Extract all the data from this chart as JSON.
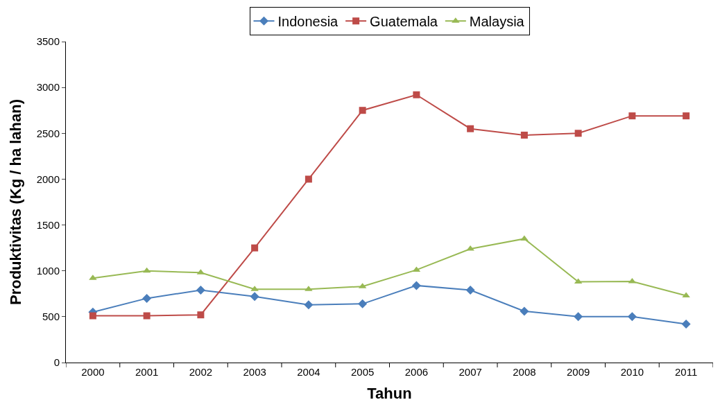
{
  "chart_data": {
    "type": "line",
    "xlabel": "Tahun",
    "ylabel": "Produktivitas (Kg / ha lahan)",
    "categories": [
      "2000",
      "2001",
      "2002",
      "2003",
      "2004",
      "2005",
      "2006",
      "2007",
      "2008",
      "2009",
      "2010",
      "2011"
    ],
    "series": [
      {
        "name": "Indonesia",
        "color": "#4a7ebb",
        "marker": "diamond",
        "values": [
          550,
          700,
          790,
          720,
          630,
          640,
          840,
          790,
          560,
          500,
          500,
          420
        ]
      },
      {
        "name": "Guatemala",
        "color": "#be4b48",
        "marker": "square",
        "values": [
          510,
          510,
          520,
          1250,
          2000,
          2750,
          2920,
          2550,
          2480,
          2500,
          2690,
          2690
        ]
      },
      {
        "name": "Malaysia",
        "color": "#98b954",
        "marker": "triangle",
        "values": [
          920,
          1000,
          980,
          800,
          800,
          830,
          1010,
          1240,
          1350,
          880,
          885,
          730
        ]
      }
    ],
    "ylim": [
      0,
      3500
    ],
    "yticks": [
      0,
      500,
      1000,
      1500,
      2000,
      2500,
      3000,
      3500
    ],
    "legend": "top"
  }
}
